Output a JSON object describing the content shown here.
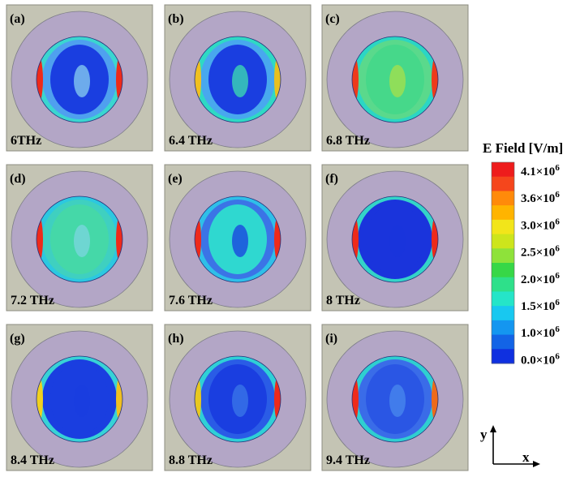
{
  "panels": [
    {
      "letter": "(a)",
      "freq": "6THz",
      "theme": "a"
    },
    {
      "letter": "(b)",
      "freq": "6.4 THz",
      "theme": "b"
    },
    {
      "letter": "(c)",
      "freq": "6.8 THz",
      "theme": "c"
    },
    {
      "letter": "(d)",
      "freq": "7.2 THz",
      "theme": "d"
    },
    {
      "letter": "(e)",
      "freq": "7.6 THz",
      "theme": "e"
    },
    {
      "letter": "(f)",
      "freq": "8 THz",
      "theme": "f"
    },
    {
      "letter": "(g)",
      "freq": "8.4 THz",
      "theme": "g"
    },
    {
      "letter": "(h)",
      "freq": "8.8 THz",
      "theme": "h"
    },
    {
      "letter": "(i)",
      "freq": "9.4 THz",
      "theme": "i"
    }
  ],
  "legend": {
    "title": "E Field [V/m]",
    "labels": [
      {
        "mant": "4.1×10",
        "exp": "6"
      },
      {
        "mant": "3.6×10",
        "exp": "6"
      },
      {
        "mant": "3.0×10",
        "exp": "6"
      },
      {
        "mant": "2.5×10",
        "exp": "6"
      },
      {
        "mant": "2.0×10",
        "exp": "6"
      },
      {
        "mant": "1.5×10",
        "exp": "6"
      },
      {
        "mant": "1.0×10",
        "exp": "6"
      },
      {
        "mant": "0.0×10",
        "exp": "6"
      }
    ],
    "colors": [
      "#ee1c1c",
      "#f5461c",
      "#ff8a0a",
      "#ffb400",
      "#f2e51a",
      "#cde51c",
      "#8ee23a",
      "#37d747",
      "#2ee08a",
      "#25e5c8",
      "#18c8f0",
      "#1496f0",
      "#1364e6",
      "#0f30e0"
    ]
  },
  "axes": {
    "y_label": "y",
    "x_label": "x"
  },
  "colors": {
    "panel_bg": "#c4c4b4",
    "outer_ring": "#b3a6c6",
    "deep_blue": "#1330d6",
    "red": "#ee2a1a"
  }
}
